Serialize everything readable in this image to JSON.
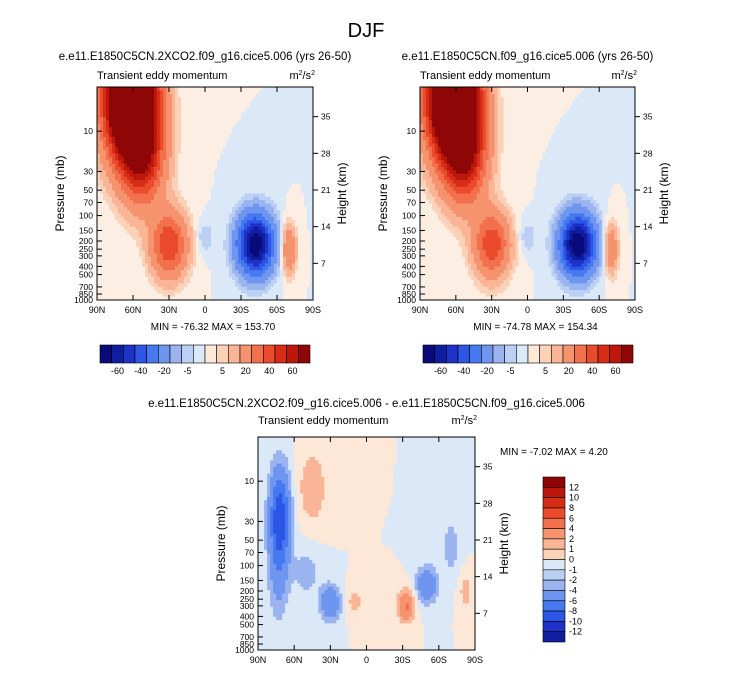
{
  "figure_title": "DJF",
  "colors": {
    "neg": [
      "#0a0a7a",
      "#0f1ea0",
      "#1e32c8",
      "#2d55e6",
      "#4678f0",
      "#6e96f0",
      "#9bb4f0",
      "#bcd0f4",
      "#dbe8f8"
    ],
    "pos": [
      "#fde7d7",
      "#fbd2b8",
      "#f9b596",
      "#f6936f",
      "#f2704c",
      "#e94b2c",
      "#d72d17",
      "#bd170b",
      "#8f0606"
    ]
  },
  "chart_data": [
    {
      "type": "contour",
      "panel": "top-left",
      "title": "e.e11.E1850C5CN.2XCO2.f09_g16.cice5.006 (yrs 26-50)",
      "subtitle_left": "Transient eddy momentum",
      "units": "m²/s²",
      "units_base": "m",
      "units_exp": "2",
      "units_mid": "/s",
      "ylabel": "Pressure (mb)",
      "ylabel_right": "Height (km)",
      "x_ticks": [
        "90N",
        "60N",
        "30N",
        "0",
        "30S",
        "60S",
        "90S"
      ],
      "x_values": [
        90,
        60,
        30,
        0,
        -30,
        -60,
        -90
      ],
      "xlim": [
        90,
        -90
      ],
      "y_ticks": [
        "10",
        "30",
        "50",
        "70",
        "100",
        "150",
        "200",
        "250",
        "300",
        "400",
        "500",
        "700",
        "850",
        "1000"
      ],
      "y_values": [
        10,
        30,
        50,
        70,
        100,
        150,
        200,
        250,
        300,
        400,
        500,
        700,
        850,
        1000
      ],
      "ylim": [
        1000,
        3
      ],
      "height_ticks": [
        "35",
        "28",
        "21",
        "14",
        "7"
      ],
      "height_values": [
        35,
        28,
        21,
        14,
        7
      ],
      "min_label": "MIN = -76.32",
      "max_label": "MAX = 153.70",
      "min": -76.32,
      "max": 153.7,
      "levels": [
        "-60",
        "-40",
        "-20",
        "-5",
        "5",
        "20",
        "40",
        "60"
      ],
      "features": [
        {
          "lat": 62,
          "p": 4,
          "value": 150,
          "sx": 14,
          "sp": 1.1
        },
        {
          "lat": 52,
          "p": 20,
          "value": 45,
          "sx": 12,
          "sp": 0.9
        },
        {
          "lat": 30,
          "p": 220,
          "value": 40,
          "sx": 10,
          "sp": 0.6
        },
        {
          "lat": -42,
          "p": 220,
          "value": -70,
          "sx": 10,
          "sp": 0.55
        },
        {
          "lat": -70,
          "p": 250,
          "value": 22,
          "sx": 4,
          "sp": 0.45
        },
        {
          "lat": 0,
          "p": 180,
          "value": -5,
          "sx": 5,
          "sp": 0.3
        }
      ]
    },
    {
      "type": "contour",
      "panel": "top-right",
      "title": "e.e11.E1850C5CN.f09_g16.cice5.006 (yrs 26-50)",
      "subtitle_left": "Transient eddy momentum",
      "units": "m²/s²",
      "units_base": "m",
      "units_exp": "2",
      "units_mid": "/s",
      "ylabel": "Pressure (mb)",
      "ylabel_right": "Height (km)",
      "x_ticks": [
        "90N",
        "60N",
        "30N",
        "0",
        "30S",
        "60S",
        "90S"
      ],
      "x_values": [
        90,
        60,
        30,
        0,
        -30,
        -60,
        -90
      ],
      "xlim": [
        90,
        -90
      ],
      "y_ticks": [
        "10",
        "30",
        "50",
        "70",
        "100",
        "150",
        "200",
        "250",
        "300",
        "400",
        "500",
        "700",
        "850",
        "1000"
      ],
      "y_values": [
        10,
        30,
        50,
        70,
        100,
        150,
        200,
        250,
        300,
        400,
        500,
        700,
        850,
        1000
      ],
      "ylim": [
        1000,
        3
      ],
      "height_ticks": [
        "35",
        "28",
        "21",
        "14",
        "7"
      ],
      "height_values": [
        35,
        28,
        21,
        14,
        7
      ],
      "min_label": "MIN = -74.78",
      "max_label": "MAX = 154.34",
      "min": -74.78,
      "max": 154.34,
      "levels": [
        "-60",
        "-40",
        "-20",
        "-5",
        "5",
        "20",
        "40",
        "60"
      ],
      "features": [
        {
          "lat": 62,
          "p": 4,
          "value": 150,
          "sx": 14,
          "sp": 1.1
        },
        {
          "lat": 52,
          "p": 20,
          "value": 45,
          "sx": 12,
          "sp": 0.9
        },
        {
          "lat": 30,
          "p": 220,
          "value": 38,
          "sx": 10,
          "sp": 0.6
        },
        {
          "lat": -42,
          "p": 220,
          "value": -72,
          "sx": 10,
          "sp": 0.55
        },
        {
          "lat": -70,
          "p": 250,
          "value": 20,
          "sx": 4,
          "sp": 0.45
        },
        {
          "lat": 0,
          "p": 180,
          "value": -5,
          "sx": 5,
          "sp": 0.3
        }
      ]
    },
    {
      "type": "contour",
      "panel": "bottom",
      "title": "e.e11.E1850C5CN.2XCO2.f09_g16.cice5.006 - e.e11.E1850C5CN.f09_g16.cice5.006",
      "subtitle_left": "Transient eddy momentum",
      "units": "m²/s²",
      "units_base": "m",
      "units_exp": "2",
      "units_mid": "/s",
      "ylabel": "Pressure (mb)",
      "ylabel_right": "Height (km)",
      "x_ticks": [
        "90N",
        "60N",
        "30N",
        "0",
        "30S",
        "60S",
        "90S"
      ],
      "x_values": [
        90,
        60,
        30,
        0,
        -30,
        -60,
        -90
      ],
      "xlim": [
        90,
        -90
      ],
      "y_ticks": [
        "10",
        "30",
        "50",
        "70",
        "100",
        "150",
        "200",
        "250",
        "300",
        "400",
        "500",
        "700",
        "850",
        "1000"
      ],
      "y_values": [
        10,
        30,
        50,
        70,
        100,
        150,
        200,
        250,
        300,
        400,
        500,
        700,
        850,
        1000
      ],
      "ylim": [
        1000,
        3
      ],
      "height_ticks": [
        "35",
        "28",
        "21",
        "14",
        "7"
      ],
      "height_values": [
        35,
        28,
        21,
        14,
        7
      ],
      "min_label": "MIN = -7.02",
      "max_label": "MAX =   4.20",
      "min": -7.02,
      "max": 4.2,
      "levels": [
        "12",
        "10",
        "8",
        "6",
        "4",
        "2",
        "1",
        "0",
        "-1",
        "-2",
        "-4",
        "-6",
        "-8",
        "-10",
        "-12"
      ],
      "features": [
        {
          "lat": 72,
          "p": 25,
          "value": -7,
          "sx": 6,
          "sp": 0.9
        },
        {
          "lat": 73,
          "p": 110,
          "value": -2.5,
          "sx": 6,
          "sp": 1.0
        },
        {
          "lat": 45,
          "p": 12,
          "value": 2.0,
          "sx": 8,
          "sp": 0.7
        },
        {
          "lat": 30,
          "p": 280,
          "value": -4,
          "sx": 6,
          "sp": 0.35
        },
        {
          "lat": -33,
          "p": 300,
          "value": 4.2,
          "sx": 5,
          "sp": 0.3
        },
        {
          "lat": -50,
          "p": 170,
          "value": -4,
          "sx": 6,
          "sp": 0.35
        },
        {
          "lat": 10,
          "p": 270,
          "value": 1.5,
          "sx": 5,
          "sp": 0.3
        },
        {
          "lat": -70,
          "p": 60,
          "value": -1.5,
          "sx": 6,
          "sp": 0.6
        },
        {
          "lat": 50,
          "p": 120,
          "value": -1.5,
          "sx": 8,
          "sp": 0.5
        },
        {
          "lat": -82,
          "p": 200,
          "value": 1.5,
          "sx": 4,
          "sp": 0.4
        }
      ]
    }
  ]
}
